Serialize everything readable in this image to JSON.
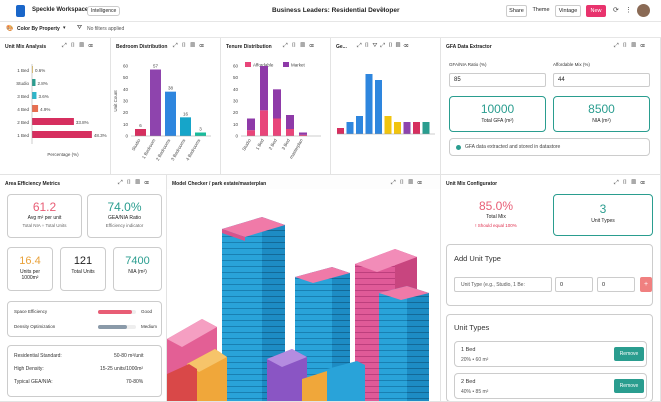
{
  "app": {
    "workspace": "Speckle Workspace",
    "badge": "Intelligence",
    "doc_title": "Business Leaders: Residential Developer",
    "share": "Share",
    "theme": "Theme",
    "view_mode": "Vintage",
    "new": "New"
  },
  "toolbar": {
    "color_by": "Color By Property",
    "filters": "No filters applied"
  },
  "unit_mix": {
    "title": "Unit Mix Analysis",
    "xlabel": "Percentage (%)"
  },
  "bedroom": {
    "title": "Bedroom Distribution",
    "ylabel": "Unit Count"
  },
  "tenure": {
    "title": "Tenure Distribution",
    "legend": [
      "Affordable",
      "Market"
    ]
  },
  "g4": {
    "title": "Ge..."
  },
  "gfa": {
    "title": "GFA Data Extractor",
    "ratio_label": "GFA/NIA Ratio (%)",
    "ratio_value": "85",
    "afford_label": "Affordable Mix (%)",
    "afford_value": "44",
    "total_gfa": "10000",
    "total_gfa_label": "Total GFA (m²)",
    "nia": "8500",
    "nia_label": "NIA (m²)",
    "status": "GFA data extracted and stored in datastore"
  },
  "area": {
    "title": "Area Efficiency Metrics",
    "avg": "61.2",
    "avg_label": "Avg m² per unit",
    "avg_sub": "Total NIA ÷ Total Units",
    "ratio": "74.0%",
    "ratio_label": "GEA/NIA Ratio",
    "ratio_sub": "Efficiency indicator",
    "units_per": "16.4",
    "units_per_label": "Units per 1000m²",
    "total_units": "121",
    "total_units_label": "Total Units",
    "nia": "7400",
    "nia_label": "NIA (m²)",
    "se_label": "Space Efficiency",
    "se_status": "Good",
    "do_label": "Density Optimization",
    "do_status": "Medium",
    "std_label": "Residential Standard:",
    "std_value": "50-80 m²/unit",
    "hd_label": "High Density:",
    "hd_value": "15-25 units/1000m²",
    "typ_label": "Typical GEA/NIA:",
    "typ_value": "70-80%"
  },
  "model": {
    "title": "Model Checker / park estate/masterplan"
  },
  "config": {
    "title": "Unit Mix Configurator",
    "total_mix": "85.0%",
    "total_mix_label": "Total Mix",
    "warning": "! Should equal 100%",
    "unit_types": "3",
    "unit_types_label": "Unit Types",
    "add_title": "Add Unit Type",
    "name_placeholder": "Unit Type (e.g., Studio, 1 Be:",
    "n1": "0",
    "n2": "0",
    "add": "+",
    "list_title": "Unit Types",
    "items": [
      {
        "name": "1 Bed",
        "detail": "20% • 60 m²",
        "remove": "Remove"
      },
      {
        "name": "2 Bed",
        "detail": "40% • 85 m²",
        "remove": "Remove"
      }
    ]
  },
  "chart_data": [
    {
      "type": "bar",
      "orientation": "horizontal",
      "title": "Unit Mix Analysis",
      "categories": [
        "1 Bed",
        "Studio",
        "3 Bed",
        "4 Bed",
        "2 Bed",
        "1 Bed"
      ],
      "values": [
        0.6,
        2.8,
        3.6,
        4.9,
        33.8,
        48.3
      ],
      "value_labels": [
        "0.6%",
        "2.8%",
        "3.6%",
        "4.9%",
        "33.8%",
        "48.3%"
      ],
      "colors": [
        "#e9c46a",
        "#2a9d8f",
        "#2fb5c9",
        "#e76f51",
        "#d62f5f",
        "#d62f5f"
      ],
      "xlabel": "Percentage (%)"
    },
    {
      "type": "bar",
      "title": "Bedroom Distribution",
      "categories": [
        "Studio",
        "1 Bedroom",
        "2 Bedrooms",
        "3 Bedrooms",
        "4 Bedrooms"
      ],
      "values": [
        6,
        57,
        38,
        16,
        3
      ],
      "colors": [
        "#d62f5f",
        "#8e44ad",
        "#2e86de",
        "#16a5c9",
        "#1abc9c"
      ],
      "ylabel": "Unit Count",
      "ylim": [
        0,
        60
      ],
      "yticks": [
        0,
        10,
        20,
        30,
        40,
        50,
        60
      ]
    },
    {
      "type": "bar",
      "stacked": true,
      "title": "Tenure Distribution",
      "categories": [
        "Studio",
        "1 Bed",
        "2 Bed",
        "3 Bed",
        "masterplan"
      ],
      "series": [
        {
          "name": "Affordable",
          "values": [
            5,
            22,
            15,
            6,
            1
          ],
          "color": "#e8457a"
        },
        {
          "name": "Market",
          "values": [
            10,
            38,
            25,
            12,
            2
          ],
          "color": "#8e3aa8"
        }
      ],
      "ylim": [
        0,
        60
      ],
      "yticks": [
        0,
        10,
        20,
        30,
        40,
        50,
        60
      ]
    },
    {
      "type": "bar",
      "title": "Ge...",
      "values": [
        1,
        2,
        3,
        10,
        9,
        3,
        2,
        2,
        2,
        2
      ],
      "colors": [
        "#d62f5f",
        "#2e86de",
        "#2e86de",
        "#2e86de",
        "#2e86de",
        "#f1c40f",
        "#f1c40f",
        "#8e44ad",
        "#d62f5f",
        "#2a9d8f"
      ]
    }
  ]
}
